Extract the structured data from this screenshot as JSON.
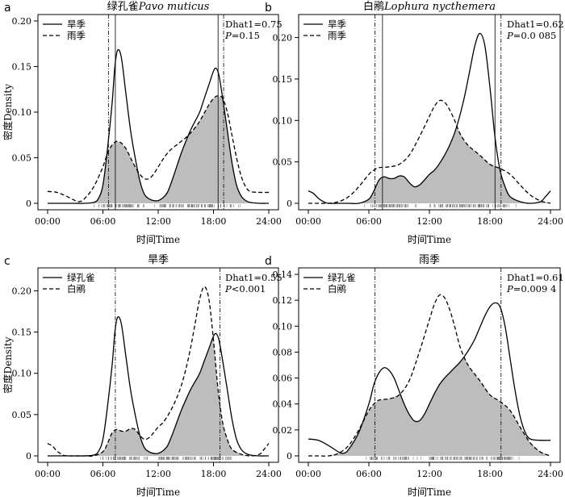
{
  "chart_data": [
    {
      "panel": "a",
      "type": "line",
      "title_prefix": "绿孔雀",
      "title_italic": "Pavo muticus",
      "xlabel": "时间Time",
      "ylabel": "密度Density",
      "xlim": [
        0,
        24
      ],
      "ylim": [
        0,
        0.2
      ],
      "yticks": [
        0,
        0.05,
        0.1,
        0.15,
        0.2
      ],
      "ytick_labels": [
        "0",
        "0.05",
        "0.10",
        "0.15",
        "0.20"
      ],
      "xticks": [
        0,
        6,
        12,
        18,
        24
      ],
      "xtick_labels": [
        "00:00",
        "06:00",
        "12:00",
        "18:00",
        "24:00"
      ],
      "legend": [
        "旱季",
        "雨季"
      ],
      "stat_dhat": "Dhat1=0.75",
      "stat_p_label": "P",
      "stat_p_value": "=0.15",
      "vlines_solid": [
        7.35,
        18.5
      ],
      "vlines_dashdot": [
        6.6,
        19.1
      ],
      "series": [
        {
          "name": "旱季",
          "style": "solid",
          "x": [
            0,
            1,
            2,
            3,
            4,
            5,
            5.5,
            6,
            6.5,
            7,
            7.3,
            7.6,
            8,
            8.5,
            9,
            9.5,
            10,
            10.5,
            11,
            11.5,
            12,
            12.5,
            13,
            13.5,
            14,
            14.5,
            15,
            15.5,
            16,
            16.5,
            17,
            17.5,
            18,
            18.3,
            18.6,
            19,
            19.5,
            20,
            20.5,
            21,
            21.5,
            22,
            23,
            24
          ],
          "values": [
            0,
            0,
            0,
            0,
            0,
            0.001,
            0.005,
            0.02,
            0.06,
            0.11,
            0.15,
            0.168,
            0.16,
            0.12,
            0.08,
            0.05,
            0.025,
            0.01,
            0.005,
            0.003,
            0.003,
            0.006,
            0.012,
            0.025,
            0.04,
            0.055,
            0.068,
            0.08,
            0.09,
            0.1,
            0.115,
            0.13,
            0.145,
            0.148,
            0.14,
            0.115,
            0.08,
            0.045,
            0.02,
            0.008,
            0.003,
            0.001,
            0,
            0
          ]
        },
        {
          "name": "雨季",
          "style": "dashed",
          "x": [
            0,
            1,
            2,
            3,
            3.5,
            4,
            5,
            6,
            6.5,
            7,
            7.5,
            8,
            8.5,
            9,
            9.5,
            10,
            10.5,
            11,
            11.5,
            12,
            12.5,
            13,
            13.5,
            14,
            14.5,
            15,
            15.5,
            16,
            16.5,
            17,
            17.5,
            18,
            18.5,
            19,
            19.5,
            20,
            20.5,
            21,
            21.5,
            22,
            23,
            24
          ],
          "values": [
            0.013,
            0.012,
            0.008,
            0.003,
            0.002,
            0.005,
            0.018,
            0.04,
            0.055,
            0.064,
            0.068,
            0.066,
            0.06,
            0.05,
            0.04,
            0.032,
            0.027,
            0.027,
            0.032,
            0.04,
            0.048,
            0.055,
            0.06,
            0.064,
            0.068,
            0.072,
            0.077,
            0.083,
            0.09,
            0.099,
            0.108,
            0.115,
            0.118,
            0.115,
            0.1,
            0.075,
            0.05,
            0.03,
            0.018,
            0.013,
            0.012,
            0.012
          ]
        }
      ]
    },
    {
      "panel": "b",
      "type": "line",
      "title_prefix": "白鹇",
      "title_italic": "Lophura nycthemera",
      "xlabel": "时间Time",
      "ylabel": "",
      "xlim": [
        0,
        24
      ],
      "ylim": [
        0,
        0.22
      ],
      "yticks": [
        0,
        0.05,
        0.1,
        0.15,
        0.2
      ],
      "ytick_labels": [
        "0",
        "0.05",
        "0.10",
        "0.15",
        "0.20"
      ],
      "xticks": [
        0,
        6,
        12,
        18,
        24
      ],
      "xtick_labels": [
        "00:00",
        "06:00",
        "12:00",
        "18:00",
        "24:00"
      ],
      "legend": [
        "旱季",
        "雨季"
      ],
      "stat_dhat": "Dhat1=0.62",
      "stat_p_label": "P",
      "stat_p_value": "=0.0 085",
      "vlines_solid": [
        7.35,
        18.5
      ],
      "vlines_dashdot": [
        6.6,
        19.1
      ],
      "series": [
        {
          "name": "旱季",
          "style": "solid",
          "x": [
            0,
            0.5,
            1,
            1.5,
            2,
            3,
            4,
            5,
            6,
            6.5,
            7,
            7.5,
            8,
            8.5,
            9,
            9.5,
            10,
            10.5,
            11,
            11.5,
            12,
            12.5,
            13,
            13.5,
            14,
            14.5,
            15,
            15.5,
            16,
            16.5,
            17,
            17.5,
            18,
            18.5,
            19,
            19.5,
            20,
            21,
            22,
            23,
            23.5,
            24
          ],
          "values": [
            0.015,
            0.012,
            0.006,
            0.002,
            0,
            0,
            0,
            0,
            0.005,
            0.015,
            0.028,
            0.032,
            0.03,
            0.03,
            0.033,
            0.032,
            0.025,
            0.02,
            0.022,
            0.028,
            0.035,
            0.04,
            0.048,
            0.058,
            0.07,
            0.085,
            0.105,
            0.13,
            0.16,
            0.19,
            0.205,
            0.19,
            0.14,
            0.08,
            0.04,
            0.02,
            0.008,
            0.002,
            0,
            0.002,
            0.008,
            0.015
          ]
        },
        {
          "name": "雨季",
          "style": "dashed",
          "x": [
            0,
            1,
            2,
            3,
            4,
            5,
            6,
            6.5,
            7,
            8,
            9,
            10,
            11,
            12,
            12.5,
            13,
            13.5,
            14,
            14.5,
            15,
            15.5,
            16,
            17,
            18,
            19,
            20,
            21,
            22,
            23,
            24
          ],
          "values": [
            0,
            0,
            0,
            0.002,
            0.008,
            0.02,
            0.035,
            0.04,
            0.043,
            0.044,
            0.047,
            0.058,
            0.08,
            0.105,
            0.117,
            0.124,
            0.122,
            0.113,
            0.1,
            0.085,
            0.075,
            0.068,
            0.058,
            0.047,
            0.042,
            0.035,
            0.022,
            0.01,
            0.003,
            0
          ]
        }
      ]
    },
    {
      "panel": "c",
      "type": "line",
      "title_prefix": "旱季",
      "title_italic": "",
      "xlabel": "时间Time",
      "ylabel": "密度Density",
      "xlim": [
        0,
        24
      ],
      "ylim": [
        0,
        0.22
      ],
      "yticks": [
        0,
        0.05,
        0.1,
        0.15,
        0.2
      ],
      "ytick_labels": [
        "0",
        "0.05",
        "0.10",
        "0.15",
        "0.20"
      ],
      "xticks": [
        0,
        6,
        12,
        18,
        24
      ],
      "xtick_labels": [
        "00:00",
        "06:00",
        "12:00",
        "18:00",
        "24:00"
      ],
      "legend": [
        "绿孔雀",
        "白鹇"
      ],
      "stat_dhat": "Dhat1=0.55",
      "stat_p_label": "P",
      "stat_p_value": "<0.001",
      "vlines_solid": [],
      "vlines_dashdot": [
        7.35,
        18.7
      ],
      "series": [
        {
          "name": "绿孔雀",
          "style": "solid",
          "x": [
            0,
            1,
            2,
            3,
            4,
            5,
            5.5,
            6,
            6.5,
            7,
            7.3,
            7.6,
            8,
            8.5,
            9,
            9.5,
            10,
            10.5,
            11,
            11.5,
            12,
            12.5,
            13,
            13.5,
            14,
            14.5,
            15,
            15.5,
            16,
            16.5,
            17,
            17.5,
            18,
            18.3,
            18.6,
            19,
            19.5,
            20,
            20.5,
            21,
            21.5,
            22,
            23,
            24
          ],
          "values": [
            0,
            0,
            0,
            0,
            0,
            0.001,
            0.005,
            0.02,
            0.06,
            0.11,
            0.15,
            0.168,
            0.16,
            0.12,
            0.08,
            0.05,
            0.025,
            0.01,
            0.005,
            0.003,
            0.003,
            0.006,
            0.012,
            0.025,
            0.04,
            0.055,
            0.068,
            0.08,
            0.09,
            0.1,
            0.115,
            0.13,
            0.145,
            0.148,
            0.14,
            0.115,
            0.08,
            0.045,
            0.02,
            0.008,
            0.003,
            0.001,
            0,
            0
          ]
        },
        {
          "name": "白鹇",
          "style": "dashed",
          "x": [
            0,
            0.5,
            1,
            1.5,
            2,
            3,
            4,
            5,
            6,
            6.5,
            7,
            7.5,
            8,
            8.5,
            9,
            9.5,
            10,
            10.5,
            11,
            11.5,
            12,
            12.5,
            13,
            13.5,
            14,
            14.5,
            15,
            15.5,
            16,
            16.5,
            17,
            17.5,
            18,
            18.5,
            19,
            19.5,
            20,
            21,
            22,
            23,
            23.5,
            24
          ],
          "values": [
            0.015,
            0.012,
            0.006,
            0.002,
            0,
            0,
            0,
            0,
            0.005,
            0.015,
            0.028,
            0.032,
            0.03,
            0.03,
            0.033,
            0.032,
            0.025,
            0.02,
            0.022,
            0.028,
            0.035,
            0.04,
            0.048,
            0.058,
            0.07,
            0.085,
            0.105,
            0.13,
            0.16,
            0.19,
            0.205,
            0.19,
            0.14,
            0.08,
            0.04,
            0.02,
            0.008,
            0.002,
            0,
            0.002,
            0.008,
            0.015
          ]
        }
      ]
    },
    {
      "panel": "d",
      "type": "line",
      "title_prefix": "雨季",
      "title_italic": "",
      "xlabel": "时间Time",
      "ylabel": "",
      "xlim": [
        0,
        24
      ],
      "ylim": [
        0,
        0.14
      ],
      "yticks": [
        0,
        0.02,
        0.04,
        0.06,
        0.08,
        0.1,
        0.12,
        0.14
      ],
      "ytick_labels": [
        "0",
        "0.02",
        "0.04",
        "0.06",
        "0.08",
        "0.10",
        "0.12",
        "0.14"
      ],
      "xticks": [
        0,
        6,
        12,
        18,
        24
      ],
      "xtick_labels": [
        "00:00",
        "06:00",
        "12:00",
        "18:00",
        "24:00"
      ],
      "legend": [
        "绿孔雀",
        "白鹇"
      ],
      "stat_dhat": "Dhat1=0.61",
      "stat_p_label": "P",
      "stat_p_value": "=0.009 4",
      "vlines_solid": [],
      "vlines_dashdot": [
        6.6,
        19.1
      ],
      "series": [
        {
          "name": "绿孔雀",
          "style": "solid",
          "x": [
            0,
            1,
            2,
            3,
            3.5,
            4,
            5,
            6,
            6.5,
            7,
            7.5,
            8,
            8.5,
            9,
            9.5,
            10,
            10.5,
            11,
            11.5,
            12,
            12.5,
            13,
            13.5,
            14,
            14.5,
            15,
            15.5,
            16,
            16.5,
            17,
            17.5,
            18,
            18.5,
            19,
            19.5,
            20,
            20.5,
            21,
            21.5,
            22,
            23,
            24
          ],
          "values": [
            0.013,
            0.012,
            0.008,
            0.003,
            0.002,
            0.005,
            0.018,
            0.04,
            0.055,
            0.064,
            0.068,
            0.066,
            0.06,
            0.05,
            0.04,
            0.032,
            0.027,
            0.027,
            0.032,
            0.04,
            0.048,
            0.055,
            0.06,
            0.064,
            0.068,
            0.072,
            0.077,
            0.083,
            0.09,
            0.099,
            0.108,
            0.115,
            0.118,
            0.115,
            0.1,
            0.075,
            0.05,
            0.03,
            0.018,
            0.013,
            0.012,
            0.012
          ]
        },
        {
          "name": "白鹇",
          "style": "dashed",
          "x": [
            0,
            1,
            2,
            3,
            4,
            5,
            6,
            6.5,
            7,
            8,
            9,
            10,
            11,
            12,
            12.5,
            13,
            13.5,
            14,
            14.5,
            15,
            15.5,
            16,
            17,
            18,
            19,
            20,
            21,
            22,
            23,
            24
          ],
          "values": [
            0,
            0,
            0,
            0.002,
            0.008,
            0.02,
            0.035,
            0.04,
            0.043,
            0.044,
            0.047,
            0.058,
            0.08,
            0.105,
            0.117,
            0.124,
            0.122,
            0.113,
            0.1,
            0.085,
            0.075,
            0.068,
            0.058,
            0.047,
            0.042,
            0.035,
            0.022,
            0.01,
            0.003,
            0
          ]
        }
      ]
    }
  ]
}
